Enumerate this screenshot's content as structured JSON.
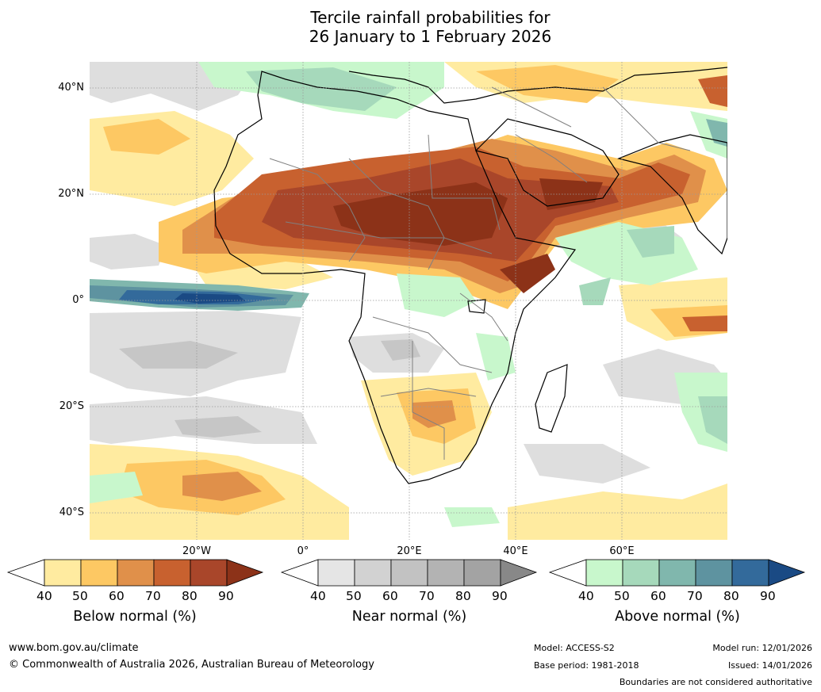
{
  "title": {
    "line1": "Tercile rainfall probabilities for",
    "line2": "26 January to 1 February 2026"
  },
  "axes": {
    "lat_labels": [
      "40°N",
      "20°N",
      "0°",
      "20°S",
      "40°S"
    ],
    "lon_labels": [
      "20°W",
      "0°",
      "20°E",
      "40°E",
      "60°E"
    ]
  },
  "colorbars": [
    {
      "label": "Below normal (%)",
      "ticks": [
        "40",
        "50",
        "60",
        "70",
        "80",
        "90"
      ],
      "colors": [
        "#ffffff",
        "#ffeba0",
        "#fdc863",
        "#e0904a",
        "#c8612f",
        "#a9462a",
        "#8c3218"
      ]
    },
    {
      "label": "Near normal (%)",
      "ticks": [
        "40",
        "50",
        "60",
        "70",
        "80",
        "90"
      ],
      "colors": [
        "#ffffff",
        "#e5e5e5",
        "#d2d2d2",
        "#c2c2c2",
        "#b3b3b3",
        "#a3a3a3",
        "#888888"
      ]
    },
    {
      "label": "Above normal (%)",
      "ticks": [
        "40",
        "50",
        "60",
        "70",
        "80",
        "90"
      ],
      "colors": [
        "#ffffff",
        "#c8f7cc",
        "#a6d9bb",
        "#80b7ad",
        "#5e93a0",
        "#336a9b",
        "#1a4a84"
      ]
    }
  ],
  "footer": {
    "website": "www.bom.gov.au/climate",
    "copyright": "© Commonwealth of Australia 2026, Australian Bureau of Meteorology",
    "model": "Model: ACCESS-S2",
    "base_period": "Base period: 1981-2018",
    "model_run": "Model run: 12/01/2026",
    "issued": "Issued: 14/01/2026",
    "disclaimer": "Boundaries are not considered authoritative"
  }
}
